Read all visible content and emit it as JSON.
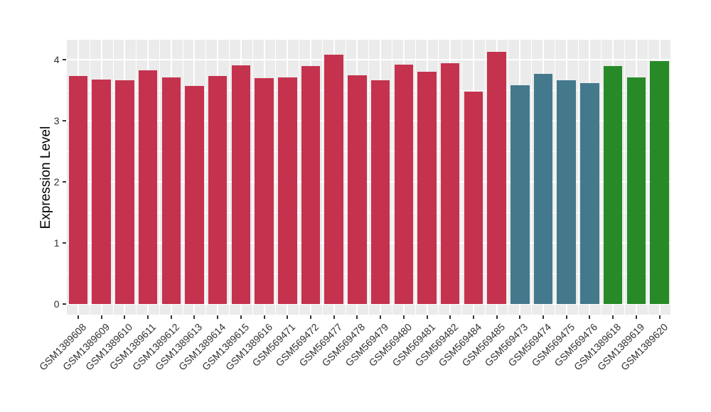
{
  "chart_data": {
    "type": "bar",
    "title": "",
    "xlabel": "",
    "ylabel": "Expression Level",
    "ylim": [
      0,
      4.33
    ],
    "yticks": [
      0,
      1,
      2,
      3,
      4
    ],
    "ytick_labels": [
      "0",
      "1",
      "2",
      "3",
      "4"
    ],
    "yminor": [
      0.5,
      1.5,
      2.5,
      3.5
    ],
    "grid": "major and minor, white on gray panel",
    "legend_position": "none",
    "categories": [
      "GSM1389608",
      "GSM1389609",
      "GSM1389610",
      "GSM1389611",
      "GSM1389612",
      "GSM1389613",
      "GSM1389614",
      "GSM1389615",
      "GSM1389616",
      "GSM569471",
      "GSM569472",
      "GSM569477",
      "GSM569478",
      "GSM569479",
      "GSM569480",
      "GSM569481",
      "GSM569482",
      "GSM569484",
      "GSM569485",
      "GSM569473",
      "GSM569474",
      "GSM569475",
      "GSM569476",
      "GSM1389618",
      "GSM1389619",
      "GSM1389620"
    ],
    "values": [
      3.73,
      3.68,
      3.67,
      3.83,
      3.71,
      3.57,
      3.73,
      3.91,
      3.7,
      3.71,
      3.9,
      4.08,
      3.75,
      3.66,
      3.92,
      3.81,
      3.95,
      3.48,
      4.13,
      3.58,
      3.77,
      3.67,
      3.62,
      3.9,
      3.71,
      3.98
    ],
    "groups": [
      "red",
      "red",
      "red",
      "red",
      "red",
      "red",
      "red",
      "red",
      "red",
      "red",
      "red",
      "red",
      "red",
      "red",
      "red",
      "red",
      "red",
      "red",
      "red",
      "teal",
      "teal",
      "teal",
      "teal",
      "green",
      "green",
      "green"
    ],
    "palette": {
      "red": "#C4324E",
      "teal": "#44798C",
      "green": "#278A26"
    },
    "colors": {
      "panel_background": "#EBEBEB",
      "grid": "#FFFFFF",
      "tick_mark": "#333333",
      "tick_text": "#303030",
      "axis_title_text": "#000000",
      "page_background": "#FFFFFF"
    }
  }
}
